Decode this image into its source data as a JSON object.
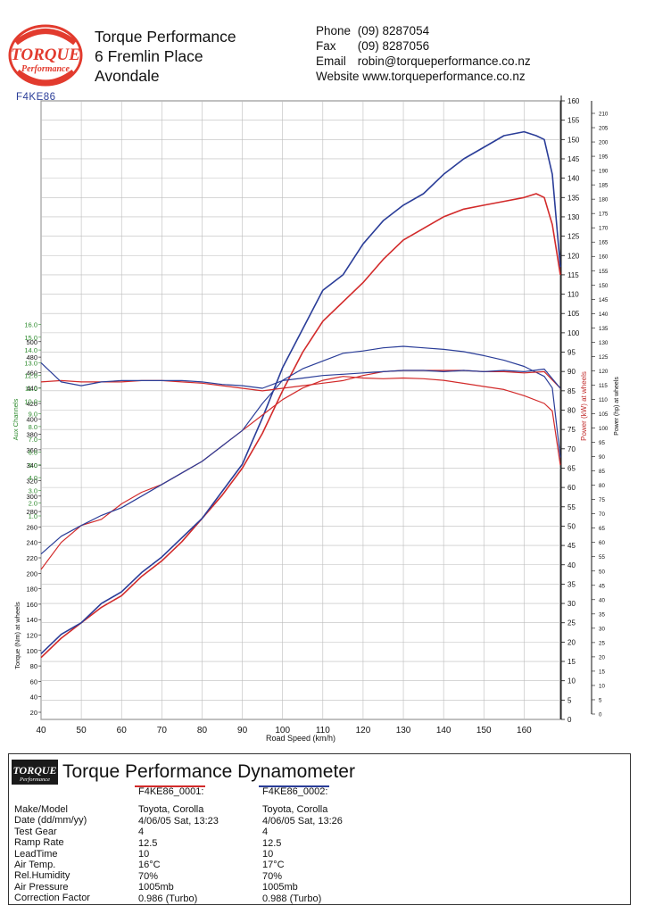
{
  "header": {
    "company_name": "Torque Performance",
    "address_line1": "6 Fremlin Place",
    "address_line2": "Avondale",
    "contact": {
      "phone_label": "Phone",
      "phone": "(09) 8287054",
      "fax_label": "Fax",
      "fax": "(09) 8287056",
      "email_label": "Email",
      "email": "robin@torqueperformance.co.nz",
      "website_label": "Website",
      "website": "www.torqueperformance.co.nz"
    },
    "run_id": "F4KE86"
  },
  "logo": {
    "top_text": "TORQUE",
    "bottom_text": "Performance"
  },
  "colors": {
    "run1": "#d22a2a",
    "run2": "#2a3d98",
    "aux_axis": "#2e8b2e",
    "power_axis": "#c23030",
    "grid": "#bdbdbd"
  },
  "chart_data": {
    "type": "line",
    "xlabel": "Road Speed (km/h)",
    "xlim": [
      40,
      169
    ],
    "x_ticks": [
      40,
      50,
      60,
      70,
      80,
      90,
      100,
      110,
      120,
      130,
      140,
      150,
      160
    ],
    "axes": {
      "power_kw": {
        "label": "Power (kW) at wheels",
        "min": 0,
        "max": 160,
        "ticks": [
          0,
          5,
          10,
          15,
          20,
          25,
          30,
          35,
          40,
          45,
          50,
          55,
          60,
          65,
          70,
          75,
          80,
          85,
          90,
          95,
          100,
          105,
          110,
          115,
          120,
          125,
          130,
          135,
          140,
          145,
          150,
          155,
          160
        ]
      },
      "power_hp": {
        "label": "Power (hp) at wheels",
        "min": 0,
        "max": 210,
        "ticks": [
          0,
          5,
          10,
          15,
          20,
          25,
          30,
          35,
          40,
          45,
          50,
          55,
          60,
          65,
          70,
          75,
          80,
          85,
          90,
          95,
          100,
          105,
          110,
          115,
          120,
          125,
          130,
          135,
          140,
          145,
          150,
          155,
          160,
          165,
          170,
          175,
          180,
          185,
          190,
          195,
          200,
          205,
          210
        ]
      },
      "torque_nm": {
        "label": "Torque (Nm) at wheels",
        "min": 0,
        "max": 500,
        "ticks": [
          20,
          40,
          60,
          80,
          100,
          120,
          140,
          160,
          180,
          200,
          220,
          240,
          260,
          280,
          300,
          320,
          340,
          360,
          380,
          400,
          420,
          440,
          460,
          480,
          500
        ]
      },
      "aux": {
        "label": "Aux Channels",
        "min": 1,
        "max": 16,
        "ticks": [
          "1.0",
          "2.0",
          "3.0",
          "4.0",
          "5.0",
          "6.0",
          "7.0",
          "8.0",
          "9.0",
          "10.0",
          "11.0",
          "12.0",
          "13.0",
          "14.0",
          "15.0",
          "16.0"
        ]
      }
    },
    "series": [
      {
        "name": "F4KE86_0001",
        "metric": "power_kw",
        "color": "#d22a2a",
        "x": [
          40,
          45,
          50,
          55,
          60,
          65,
          70,
          75,
          80,
          85,
          90,
          95,
          100,
          105,
          110,
          115,
          120,
          125,
          130,
          135,
          140,
          145,
          150,
          155,
          160,
          163,
          165,
          167,
          169
        ],
        "y": [
          16,
          21,
          25,
          29,
          32,
          37,
          41,
          46,
          52,
          58,
          65,
          74,
          85,
          95,
          103,
          108,
          113,
          119,
          124,
          127,
          130,
          132,
          133,
          134,
          135,
          136,
          135,
          128,
          115
        ]
      },
      {
        "name": "F4KE86_0002",
        "metric": "power_kw",
        "color": "#2a3d98",
        "x": [
          40,
          45,
          50,
          55,
          60,
          65,
          70,
          75,
          80,
          85,
          90,
          95,
          100,
          105,
          110,
          115,
          120,
          125,
          130,
          135,
          140,
          145,
          150,
          155,
          160,
          163,
          165,
          167,
          169
        ],
        "y": [
          17,
          22,
          25,
          30,
          33,
          38,
          42,
          47,
          52,
          59,
          66,
          78,
          91,
          101,
          111,
          115,
          123,
          129,
          133,
          136,
          141,
          145,
          148,
          151,
          152,
          151,
          150,
          141,
          117
        ]
      },
      {
        "name": "F4KE86_0001",
        "metric": "torque_nm",
        "color": "#d22a2a",
        "x": [
          40,
          45,
          50,
          55,
          60,
          65,
          70,
          75,
          80,
          85,
          90,
          95,
          100,
          105,
          110,
          115,
          120,
          125,
          130,
          135,
          140,
          145,
          150,
          155,
          160,
          165,
          167,
          169
        ],
        "y": [
          205,
          240,
          262,
          270,
          290,
          305,
          315,
          330,
          345,
          365,
          385,
          405,
          425,
          440,
          450,
          455,
          453,
          452,
          453,
          452,
          450,
          446,
          442,
          438,
          430,
          420,
          410,
          340
        ]
      },
      {
        "name": "F4KE86_0002",
        "metric": "torque_nm",
        "color": "#2a3d98",
        "x": [
          40,
          45,
          50,
          55,
          60,
          65,
          70,
          75,
          80,
          85,
          90,
          95,
          100,
          105,
          110,
          115,
          120,
          125,
          130,
          135,
          140,
          145,
          150,
          155,
          160,
          165,
          167,
          169
        ],
        "y": [
          225,
          248,
          262,
          275,
          285,
          300,
          315,
          330,
          345,
          365,
          385,
          420,
          450,
          465,
          475,
          485,
          488,
          492,
          494,
          492,
          490,
          487,
          482,
          476,
          468,
          455,
          440,
          350
        ]
      },
      {
        "name": "F4KE86_0001",
        "metric": "aux",
        "color": "#d22a2a",
        "x": [
          40,
          45,
          50,
          55,
          60,
          65,
          70,
          75,
          80,
          85,
          90,
          95,
          100,
          105,
          110,
          115,
          120,
          125,
          130,
          135,
          140,
          145,
          150,
          155,
          160,
          165,
          169
        ],
        "y": [
          11.5,
          11.6,
          11.5,
          11.5,
          11.5,
          11.6,
          11.6,
          11.5,
          11.4,
          11.2,
          11.0,
          10.8,
          11.0,
          11.2,
          11.4,
          11.6,
          12.0,
          12.3,
          12.4,
          12.4,
          12.4,
          12.4,
          12.3,
          12.3,
          12.2,
          12.3,
          11.0
        ]
      },
      {
        "name": "F4KE86_0002",
        "metric": "aux",
        "color": "#2a3d98",
        "x": [
          40,
          45,
          50,
          55,
          60,
          65,
          70,
          75,
          80,
          85,
          90,
          95,
          100,
          105,
          110,
          115,
          120,
          125,
          130,
          135,
          140,
          145,
          150,
          155,
          160,
          165,
          169
        ],
        "y": [
          13.0,
          11.5,
          11.2,
          11.5,
          11.6,
          11.6,
          11.6,
          11.6,
          11.5,
          11.3,
          11.2,
          11.0,
          11.6,
          11.8,
          12.0,
          12.1,
          12.2,
          12.3,
          12.4,
          12.4,
          12.3,
          12.4,
          12.3,
          12.4,
          12.3,
          12.5,
          11.0
        ]
      }
    ]
  },
  "dyno": {
    "title": "Torque Performance Dynamometer",
    "labels": [
      "Make/Model",
      "Date (dd/mm/yy)",
      "Test Gear",
      "Ramp Rate",
      "LeadTime",
      "Air Temp.",
      "Rel.Humidity",
      "Air Pressure",
      "Correction Factor"
    ],
    "runs": [
      {
        "name": "F4KE86_0001:",
        "values": [
          "Toyota, Corolla",
          "4/06/05 Sat, 13:23",
          "4",
          "12.5",
          "10",
          "16°C",
          "70%",
          "1005mb",
          "0.986 (Turbo)"
        ]
      },
      {
        "name": "F4KE86_0002:",
        "values": [
          "Toyota, Corolla",
          "4/06/05 Sat, 13:26",
          "4",
          "12.5",
          "10",
          "17°C",
          "70%",
          "1005mb",
          "0.988 (Turbo)"
        ]
      }
    ]
  }
}
